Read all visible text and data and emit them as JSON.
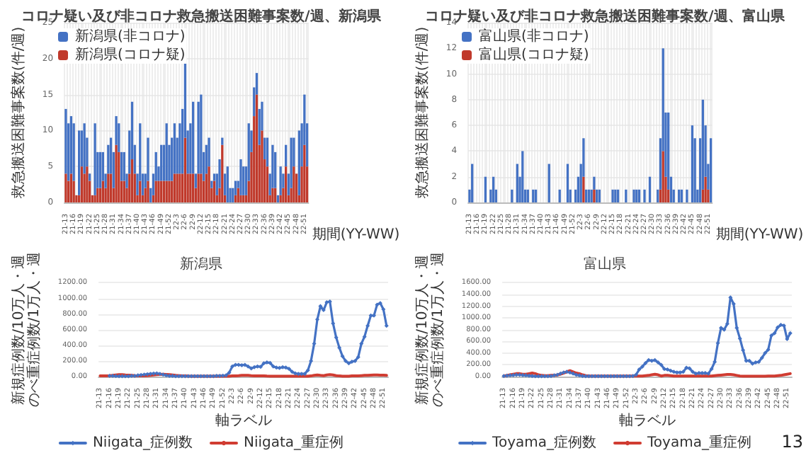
{
  "chart_data": [
    {
      "type": "bar",
      "title": "コロナ疑い及び非コロナ救急搬送困難事案数/週、新潟県",
      "xlabel": "期間(YY-WW)",
      "ylabel": "救急搬送困難事案数(件/週)",
      "stacked": true,
      "grid": true,
      "legend": "top left",
      "ylim": [
        0,
        25
      ],
      "yticks": [
        0,
        5,
        10,
        15,
        20,
        25
      ],
      "categories": [
        "21-13",
        null,
        null,
        "21-16",
        null,
        null,
        "21-19",
        null,
        null,
        "21-22",
        null,
        null,
        "21-25",
        null,
        null,
        "21-28",
        null,
        null,
        "21-31",
        null,
        null,
        "21-34",
        null,
        null,
        "21-37",
        null,
        null,
        "21-40",
        null,
        null,
        "21-43",
        null,
        null,
        "21-46",
        null,
        null,
        "21-49",
        null,
        null,
        "21-52",
        null,
        null,
        "22-3",
        null,
        null,
        "22-6",
        null,
        null,
        "22-9",
        null,
        null,
        "22-12",
        null,
        null,
        "22-15",
        null,
        null,
        "22-18",
        null,
        null,
        "22-21",
        null,
        null,
        "22-24",
        null,
        null,
        "22-27",
        null,
        null,
        "22-30",
        null,
        null,
        "22-33",
        null,
        null,
        "22-36",
        null,
        null,
        "22-39",
        null,
        null,
        "22-42",
        null,
        null,
        "22-45",
        null,
        null,
        "22-48",
        null,
        null,
        "22-51",
        null
      ],
      "series": [
        {
          "name": "新潟県(コロナ疑)",
          "color": "#c0392b",
          "values": [
            4,
            3,
            4,
            3,
            1,
            1,
            5,
            4,
            5,
            3,
            1,
            1,
            2,
            2,
            3,
            2,
            4,
            4,
            2,
            8,
            7,
            3,
            3,
            2,
            4,
            6,
            4,
            1,
            3,
            1,
            2,
            3,
            0,
            1,
            3,
            3,
            3,
            3,
            3,
            3,
            3,
            4,
            4,
            4,
            4,
            9,
            4,
            4,
            4,
            2,
            4,
            4,
            3,
            4,
            5,
            2,
            3,
            1,
            2,
            8,
            1,
            0,
            0,
            0,
            1,
            2,
            1,
            1,
            1,
            3,
            7,
            12,
            15,
            8,
            10,
            6,
            5,
            1,
            2,
            2,
            0,
            1,
            2,
            5,
            1,
            2,
            5,
            4,
            1,
            5,
            8,
            5
          ]
        },
        {
          "name": "新潟県(非コロナ)",
          "color": "#4472c4",
          "values": [
            9,
            8,
            8,
            8,
            0,
            9,
            5,
            7,
            4,
            1,
            0,
            10,
            5,
            5,
            4,
            2,
            4,
            5,
            5,
            4,
            4,
            4,
            4,
            2,
            6,
            8,
            4,
            3,
            8,
            3,
            2,
            6,
            2,
            3,
            4,
            2,
            5,
            5,
            8,
            5,
            6,
            7,
            5,
            7,
            9,
            11,
            6,
            7,
            10,
            2,
            10,
            11,
            4,
            4,
            4,
            1,
            1,
            3,
            4,
            1,
            3,
            5,
            2,
            2,
            2,
            1,
            5,
            4,
            4,
            8,
            3,
            4,
            3,
            5,
            4,
            3,
            4,
            3,
            6,
            5,
            1,
            4,
            2,
            3,
            3,
            7,
            4,
            0,
            9,
            6,
            7,
            6
          ]
        }
      ]
    },
    {
      "type": "bar",
      "title": "コロナ疑い及び非コロナ救急搬送困難事案数/週、富山県",
      "xlabel": "期間(YY-WW)",
      "ylabel": "救急搬送困難事案数(件/週)",
      "stacked": true,
      "grid": true,
      "legend": "top left",
      "ylim": [
        0,
        14
      ],
      "yticks": [
        0,
        2,
        4,
        6,
        8,
        10,
        12,
        14
      ],
      "categories": [
        "21-13",
        null,
        null,
        "21-16",
        null,
        null,
        "21-19",
        null,
        null,
        "21-22",
        null,
        null,
        "21-25",
        null,
        null,
        "21-28",
        null,
        null,
        "21-31",
        null,
        null,
        "21-34",
        null,
        null,
        "21-37",
        null,
        null,
        "21-40",
        null,
        null,
        "21-43",
        null,
        null,
        "21-46",
        null,
        null,
        "21-49",
        null,
        null,
        "21-52",
        null,
        null,
        "22-3",
        null,
        null,
        "22-6",
        null,
        null,
        "22-9",
        null,
        null,
        "22-12",
        null,
        null,
        "22-15",
        null,
        null,
        "22-18",
        null,
        null,
        "22-21",
        null,
        null,
        "22-24",
        null,
        null,
        "22-27",
        null,
        null,
        "22-30",
        null,
        null,
        "22-33",
        null,
        null,
        "22-36",
        null,
        null,
        "22-39",
        null,
        null,
        "22-42",
        null,
        null,
        "22-45",
        null,
        null,
        "22-48",
        null,
        null,
        "22-51",
        null
      ],
      "series": [
        {
          "name": "富山県(コロナ疑)",
          "color": "#c0392b",
          "values": [
            0,
            0,
            0,
            0,
            0,
            0,
            0,
            0,
            0,
            0,
            0,
            0,
            0,
            0,
            0,
            0,
            0,
            0,
            0,
            0,
            0,
            0,
            0,
            0,
            0,
            0,
            0,
            0,
            0,
            0,
            0,
            0,
            0,
            0,
            0,
            0,
            0,
            0,
            0,
            0,
            0,
            0,
            0,
            2,
            0,
            0,
            0,
            1,
            0,
            0,
            0,
            0,
            0,
            0,
            0,
            0,
            0,
            0,
            0,
            0,
            0,
            0,
            0,
            0,
            0,
            0,
            0,
            0,
            0,
            0,
            0,
            0,
            1,
            4,
            2,
            1,
            0,
            0,
            0,
            0,
            0,
            0,
            0,
            0,
            0,
            0,
            0,
            0,
            1,
            2,
            1,
            0
          ]
        },
        {
          "name": "富山県(非コロナ)",
          "color": "#4472c4",
          "values": [
            1,
            3,
            0,
            0,
            0,
            0,
            2,
            0,
            1,
            2,
            1,
            0,
            0,
            0,
            0,
            0,
            1,
            0,
            3,
            2,
            4,
            1,
            1,
            0,
            1,
            1,
            0,
            0,
            0,
            0,
            3,
            0,
            0,
            0,
            1,
            0,
            0,
            3,
            1,
            0,
            1,
            2,
            3,
            3,
            1,
            1,
            1,
            1,
            1,
            1,
            0,
            0,
            0,
            0,
            1,
            1,
            1,
            0,
            0,
            1,
            0,
            0,
            1,
            1,
            1,
            0,
            1,
            0,
            2,
            0,
            0,
            1,
            4,
            8,
            5,
            6,
            2,
            1,
            0,
            1,
            1,
            0,
            1,
            0,
            6,
            5,
            1,
            5,
            7,
            4,
            2,
            5
          ]
        }
      ]
    },
    {
      "type": "line",
      "title": "新潟県",
      "xlabel": "軸ラベル",
      "ylabel": "新規症例数/10万人・週のべ重症例数/1万人・週",
      "grid": "y",
      "legend": "bottom",
      "ylim": [
        0,
        1200
      ],
      "yticks": [
        {
          "value": 0,
          "label": "0.00"
        },
        {
          "value": 200,
          "label": "200.00"
        },
        {
          "value": 400,
          "label": "400.00"
        },
        {
          "value": 600,
          "label": "600.00"
        },
        {
          "value": 800,
          "label": "800.00"
        },
        {
          "value": 1000,
          "label": "1000.00"
        },
        {
          "value": 1200,
          "label": "1200.00"
        }
      ],
      "categories": [
        "21-13",
        null,
        null,
        "21-16",
        null,
        null,
        "21-19",
        null,
        null,
        "21-22",
        null,
        null,
        "21-25",
        null,
        null,
        "21-28",
        null,
        null,
        "21-31",
        null,
        null,
        "21-34",
        null,
        null,
        "21-37",
        null,
        null,
        "21-40",
        null,
        null,
        "21-43",
        null,
        null,
        "21-46",
        null,
        null,
        "21-49",
        null,
        null,
        "21-52",
        null,
        null,
        "22-3",
        null,
        null,
        "22-6",
        null,
        null,
        "22-9",
        null,
        null,
        "22-12",
        null,
        null,
        "22-15",
        null,
        null,
        "22-18",
        null,
        null,
        "22-21",
        null,
        null,
        "22-24",
        null,
        null,
        "22-27",
        null,
        null,
        "22-30",
        null,
        null,
        "22-33",
        null,
        null,
        "22-36",
        null,
        null,
        "22-39",
        null,
        null,
        "22-42",
        null,
        null,
        "22-45",
        null,
        null,
        "22-48",
        null,
        null,
        "22-51",
        null
      ],
      "series": [
        {
          "name": "Niigata_症例数",
          "color": "#4472c4",
          "marker": "diamond",
          "values": [
            null,
            null,
            null,
            10,
            8,
            6,
            5,
            5,
            5,
            5,
            8,
            10,
            15,
            20,
            25,
            30,
            35,
            38,
            40,
            35,
            25,
            15,
            10,
            8,
            5,
            5,
            5,
            5,
            5,
            5,
            5,
            5,
            5,
            5,
            5,
            5,
            5,
            8,
            10,
            12,
            15,
            50,
            130,
            150,
            150,
            145,
            150,
            130,
            105,
            120,
            130,
            125,
            170,
            180,
            175,
            130,
            115,
            110,
            120,
            115,
            100,
            60,
            40,
            35,
            35,
            35,
            80,
            200,
            420,
            730,
            900,
            850,
            950,
            960,
            680,
            500,
            370,
            260,
            200,
            170,
            190,
            200,
            250,
            420,
            510,
            650,
            780,
            780,
            920,
            940,
            860,
            650
          ]
        },
        {
          "name": "Niigata_重症例",
          "color": "#d03c32",
          "marker": "none",
          "values": [
            10,
            10,
            10,
            12,
            15,
            20,
            25,
            25,
            20,
            18,
            15,
            12,
            10,
            8,
            10,
            12,
            15,
            20,
            25,
            28,
            30,
            28,
            25,
            20,
            15,
            12,
            10,
            8,
            6,
            5,
            5,
            5,
            5,
            5,
            5,
            5,
            5,
            5,
            5,
            5,
            5,
            5,
            8,
            10,
            12,
            15,
            15,
            15,
            12,
            10,
            10,
            8,
            8,
            6,
            5,
            5,
            5,
            5,
            5,
            5,
            5,
            5,
            5,
            5,
            5,
            5,
            5,
            8,
            15,
            20,
            15,
            12,
            20,
            25,
            20,
            12,
            8,
            5,
            5,
            5,
            8,
            8,
            10,
            12,
            15,
            15,
            18,
            20,
            20,
            18,
            18,
            15
          ]
        }
      ]
    },
    {
      "type": "line",
      "title": "富山県",
      "xlabel": "軸ラベル",
      "ylabel": "新規症例数/10万人・週のべ重症例数/1万人・週",
      "grid": "y",
      "legend": "bottom",
      "ylim": [
        0,
        1600
      ],
      "yticks": [
        {
          "value": 0,
          "label": "0.00"
        },
        {
          "value": 200,
          "label": "200.00"
        },
        {
          "value": 400,
          "label": "400.00"
        },
        {
          "value": 600,
          "label": "600.00"
        },
        {
          "value": 800,
          "label": "800.00"
        },
        {
          "value": 1000,
          "label": "1000.00"
        },
        {
          "value": 1200,
          "label": "1200.00"
        },
        {
          "value": 1400,
          "label": "1400.00"
        },
        {
          "value": 1600,
          "label": "1600.00"
        }
      ],
      "annotations": [
        "13"
      ],
      "categories": [
        "21-13",
        null,
        null,
        "21-16",
        null,
        null,
        "21-19",
        null,
        null,
        "21-22",
        null,
        null,
        "21-25",
        null,
        null,
        "21-28",
        null,
        null,
        "21-31",
        null,
        null,
        "21-34",
        null,
        null,
        "21-37",
        null,
        null,
        "21-40",
        null,
        null,
        "21-43",
        null,
        null,
        "21-46",
        null,
        null,
        "21-49",
        null,
        null,
        "21-52",
        null,
        null,
        "22-3",
        null,
        null,
        "22-6",
        null,
        null,
        "22-9",
        null,
        null,
        "22-12",
        null,
        null,
        "22-15",
        null,
        null,
        "22-18",
        null,
        null,
        "22-21",
        null,
        null,
        "22-24",
        null,
        null,
        "22-27",
        null,
        null,
        "22-30",
        null,
        null,
        "22-33",
        null,
        null,
        "22-36",
        null,
        null,
        "22-39",
        null,
        null,
        "22-42",
        null,
        null,
        "22-45",
        null,
        null,
        "22-48",
        null,
        null,
        "22-51",
        null
      ],
      "series": [
        {
          "name": "Toyama_症例数",
          "color": "#4472c4",
          "marker": "diamond",
          "values": [
            10,
            15,
            20,
            25,
            30,
            30,
            25,
            20,
            15,
            10,
            5,
            5,
            5,
            5,
            5,
            10,
            20,
            30,
            50,
            70,
            80,
            70,
            50,
            30,
            20,
            10,
            5,
            5,
            5,
            5,
            5,
            5,
            5,
            5,
            5,
            5,
            5,
            5,
            5,
            5,
            5,
            10,
            30,
            120,
            170,
            230,
            280,
            270,
            280,
            240,
            200,
            130,
            120,
            100,
            80,
            70,
            70,
            80,
            150,
            140,
            80,
            50,
            60,
            60,
            60,
            50,
            130,
            250,
            570,
            830,
            800,
            900,
            1350,
            1240,
            830,
            650,
            450,
            270,
            270,
            220,
            240,
            250,
            320,
            400,
            460,
            700,
            740,
            840,
            880,
            870,
            640,
            740
          ]
        },
        {
          "name": "Toyama_重症例",
          "color": "#d03c32",
          "marker": "none",
          "values": [
            10,
            20,
            30,
            40,
            50,
            50,
            40,
            40,
            50,
            60,
            50,
            30,
            20,
            15,
            15,
            20,
            20,
            25,
            40,
            60,
            80,
            100,
            80,
            60,
            50,
            30,
            15,
            10,
            10,
            10,
            10,
            10,
            10,
            10,
            10,
            10,
            10,
            10,
            10,
            10,
            10,
            10,
            10,
            10,
            10,
            15,
            20,
            30,
            40,
            30,
            10,
            20,
            20,
            15,
            10,
            10,
            10,
            10,
            10,
            10,
            10,
            10,
            10,
            10,
            10,
            10,
            10,
            15,
            20,
            25,
            30,
            35,
            35,
            30,
            20,
            10,
            5,
            5,
            5,
            5,
            5,
            5,
            5,
            5,
            10,
            10,
            10,
            15,
            20,
            30,
            40,
            50
          ]
        }
      ]
    }
  ]
}
